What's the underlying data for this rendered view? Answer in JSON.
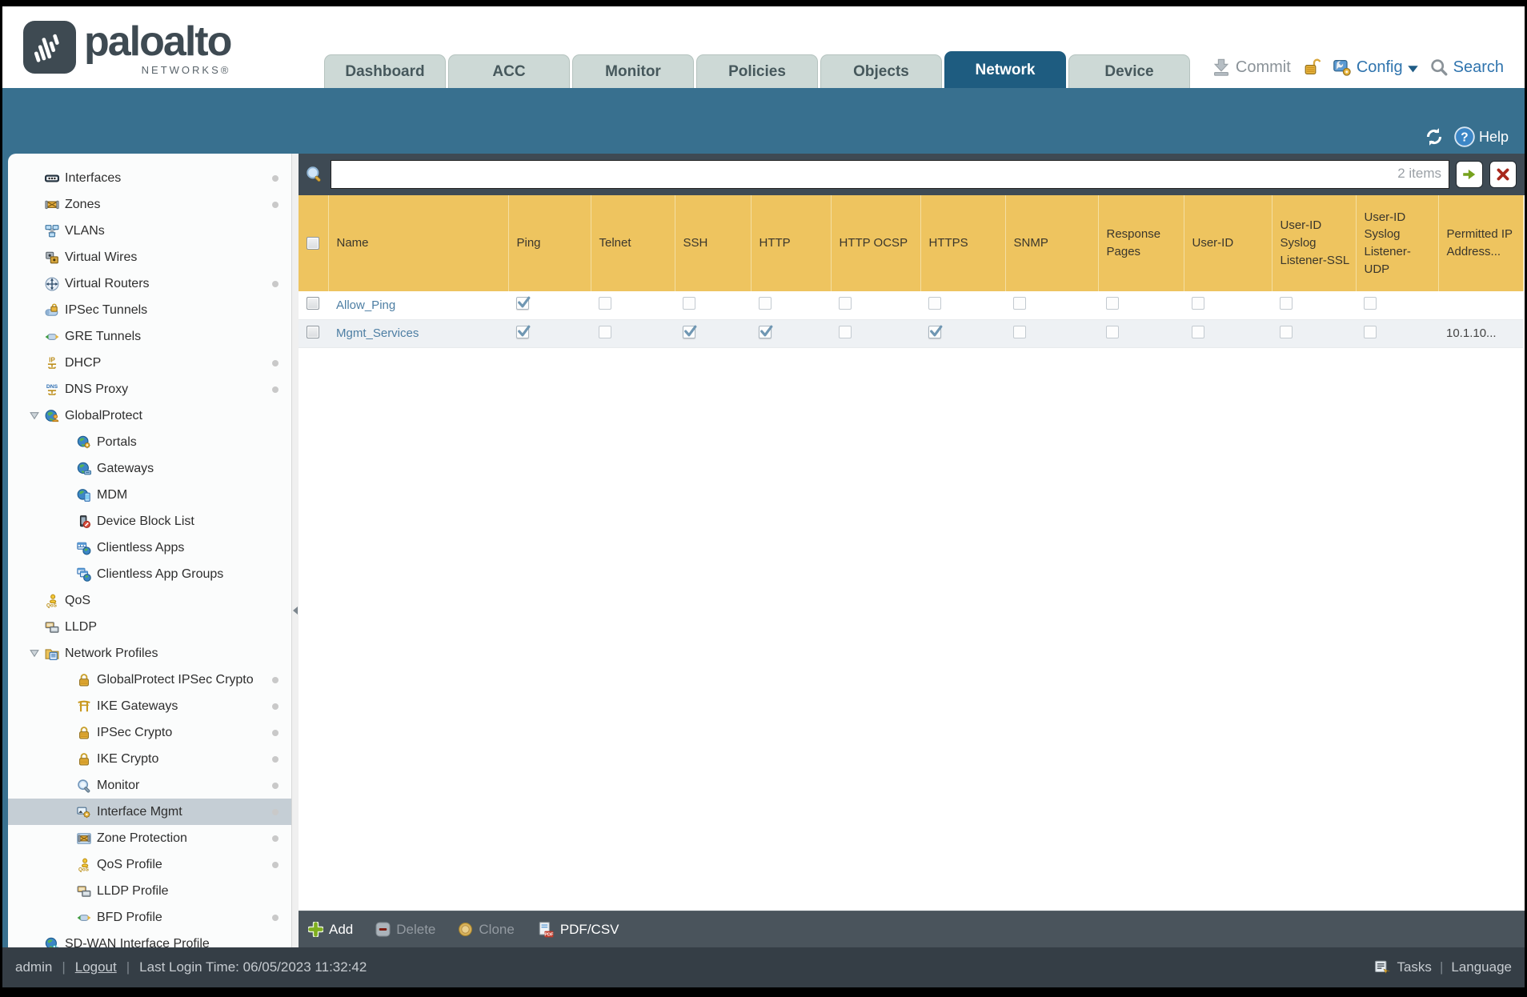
{
  "brand": {
    "name": "paloalto",
    "sub": "NETWORKS®"
  },
  "header": {
    "commit": "Commit",
    "config": "Config",
    "search": "Search"
  },
  "tabs": [
    {
      "label": "Dashboard",
      "active": false
    },
    {
      "label": "ACC",
      "active": false
    },
    {
      "label": "Monitor",
      "active": false
    },
    {
      "label": "Policies",
      "active": false
    },
    {
      "label": "Objects",
      "active": false
    },
    {
      "label": "Network",
      "active": true
    },
    {
      "label": "Device",
      "active": false
    }
  ],
  "band": {
    "help": "Help"
  },
  "sidebar": {
    "items": [
      {
        "label": "Interfaces",
        "icon": "interfaces",
        "level": 0,
        "dot": true
      },
      {
        "label": "Zones",
        "icon": "zones",
        "level": 0,
        "dot": true
      },
      {
        "label": "VLANs",
        "icon": "vlans",
        "level": 0,
        "dot": false
      },
      {
        "label": "Virtual Wires",
        "icon": "virtual-wires",
        "level": 0,
        "dot": false
      },
      {
        "label": "Virtual Routers",
        "icon": "virtual-routers",
        "level": 0,
        "dot": true
      },
      {
        "label": "IPSec Tunnels",
        "icon": "ipsec-tunnels",
        "level": 0,
        "dot": false
      },
      {
        "label": "GRE Tunnels",
        "icon": "gre-tunnels",
        "level": 0,
        "dot": false
      },
      {
        "label": "DHCP",
        "icon": "dhcp",
        "level": 0,
        "dot": true
      },
      {
        "label": "DNS Proxy",
        "icon": "dns-proxy",
        "level": 0,
        "dot": true
      },
      {
        "label": "GlobalProtect",
        "icon": "globalprotect",
        "level": 0,
        "dot": false,
        "expanded": true
      },
      {
        "label": "Portals",
        "icon": "gp-portals",
        "level": 1,
        "dot": false
      },
      {
        "label": "Gateways",
        "icon": "gp-gateways",
        "level": 1,
        "dot": false
      },
      {
        "label": "MDM",
        "icon": "gp-mdm",
        "level": 1,
        "dot": false
      },
      {
        "label": "Device Block List",
        "icon": "device-block-list",
        "level": 1,
        "dot": false
      },
      {
        "label": "Clientless Apps",
        "icon": "clientless-apps",
        "level": 1,
        "dot": false
      },
      {
        "label": "Clientless App Groups",
        "icon": "clientless-app-groups",
        "level": 1,
        "dot": false
      },
      {
        "label": "QoS",
        "icon": "qos",
        "level": 0,
        "dot": false
      },
      {
        "label": "LLDP",
        "icon": "lldp",
        "level": 0,
        "dot": false
      },
      {
        "label": "Network Profiles",
        "icon": "network-profiles",
        "level": 0,
        "dot": false,
        "expanded": true
      },
      {
        "label": "GlobalProtect IPSec Crypto",
        "icon": "lock",
        "level": 1,
        "dot": true
      },
      {
        "label": "IKE Gateways",
        "icon": "ike-gateways",
        "level": 1,
        "dot": true
      },
      {
        "label": "IPSec Crypto",
        "icon": "lock",
        "level": 1,
        "dot": true
      },
      {
        "label": "IKE Crypto",
        "icon": "lock",
        "level": 1,
        "dot": true
      },
      {
        "label": "Monitor",
        "icon": "monitor-profile",
        "level": 1,
        "dot": true
      },
      {
        "label": "Interface Mgmt",
        "icon": "interface-mgmt",
        "level": 1,
        "dot": true,
        "selected": true
      },
      {
        "label": "Zone Protection",
        "icon": "zone-protection",
        "level": 1,
        "dot": true
      },
      {
        "label": "QoS Profile",
        "icon": "qos",
        "level": 1,
        "dot": true
      },
      {
        "label": "LLDP Profile",
        "icon": "lldp",
        "level": 1,
        "dot": false
      },
      {
        "label": "BFD Profile",
        "icon": "bfd-profile",
        "level": 1,
        "dot": true
      },
      {
        "label": "SD-WAN Interface Profile",
        "icon": "sdwan",
        "level": 0,
        "dot": false
      }
    ]
  },
  "search": {
    "value": "",
    "count": "2 items"
  },
  "table": {
    "columns": [
      {
        "key": "sel",
        "label": "",
        "type": "selbox"
      },
      {
        "key": "name",
        "label": "Name",
        "type": "text"
      },
      {
        "key": "ping",
        "label": "Ping",
        "type": "check"
      },
      {
        "key": "telnet",
        "label": "Telnet",
        "type": "check"
      },
      {
        "key": "ssh",
        "label": "SSH",
        "type": "check"
      },
      {
        "key": "http",
        "label": "HTTP",
        "type": "check"
      },
      {
        "key": "http_ocsp",
        "label": "HTTP OCSP",
        "type": "check"
      },
      {
        "key": "https",
        "label": "HTTPS",
        "type": "check"
      },
      {
        "key": "snmp",
        "label": "SNMP",
        "type": "check"
      },
      {
        "key": "response_pages",
        "label": "Response Pages",
        "type": "check"
      },
      {
        "key": "user_id",
        "label": "User-ID",
        "type": "check"
      },
      {
        "key": "uid_syslog_ssl",
        "label": "User-ID Syslog Listener-SSL",
        "type": "check"
      },
      {
        "key": "uid_syslog_udp",
        "label": "User-ID Syslog Listener-UDP",
        "type": "check"
      },
      {
        "key": "permitted_ip",
        "label": "Permitted IP Address...",
        "type": "text"
      }
    ],
    "rows": [
      {
        "name": "Allow_Ping",
        "checks": {
          "ping": true,
          "telnet": false,
          "ssh": false,
          "http": false,
          "http_ocsp": false,
          "https": false,
          "snmp": false,
          "response_pages": false,
          "user_id": false,
          "uid_syslog_ssl": false,
          "uid_syslog_udp": false
        },
        "permitted_ip": ""
      },
      {
        "name": "Mgmt_Services",
        "checks": {
          "ping": true,
          "telnet": false,
          "ssh": true,
          "http": true,
          "http_ocsp": false,
          "https": true,
          "snmp": false,
          "response_pages": false,
          "user_id": false,
          "uid_syslog_ssl": false,
          "uid_syslog_udp": false
        },
        "permitted_ip": "10.1.10..."
      }
    ]
  },
  "toolbar": {
    "add": "Add",
    "delete": "Delete",
    "clone": "Clone",
    "pdfcsv": "PDF/CSV"
  },
  "status": {
    "user": "admin",
    "logout": "Logout",
    "last_login": "Last Login Time: 06/05/2023 11:32:42",
    "tasks": "Tasks",
    "language": "Language"
  },
  "colors": {
    "band_blue": "#38708f",
    "active_tab": "#1e5c80",
    "table_header_gold": "#eec45f",
    "link_blue": "#4d7ea3",
    "check_blue": "#7097b3"
  }
}
